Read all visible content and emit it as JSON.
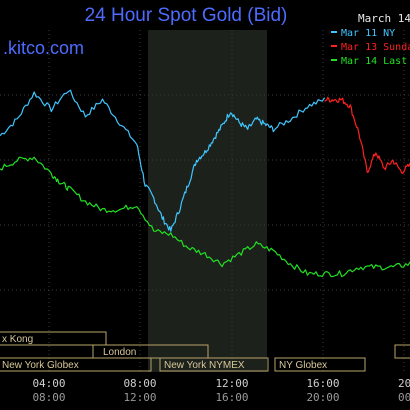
{
  "chart_data": {
    "type": "line",
    "title": "24 Hour Spot Gold (Bid)",
    "brand": ".kitco.com",
    "date_label": "March 14",
    "x_ticks_top": [
      "04:00",
      "08:00",
      "12:00",
      "16:00",
      "20"
    ],
    "x_ticks_bottom": [
      "08:00",
      "12:00",
      "16:00",
      "20:00",
      "00"
    ],
    "sessions": [
      "x Kong",
      "New York Globex",
      "London",
      "New York NYMEX",
      "NY Globex"
    ],
    "grid": true,
    "series": [
      {
        "name": "Mar 11 NY",
        "color": "#3fc6ff",
        "x": [
          0,
          1,
          2,
          3,
          4,
          5,
          6,
          7,
          8,
          8.5,
          9,
          9.5,
          10,
          10.5,
          11,
          11.5,
          12,
          12.5,
          13,
          13.5,
          14,
          14.5,
          15,
          15.5,
          16,
          17,
          18,
          19
        ],
        "y": [
          0.4,
          0.5,
          0.66,
          0.56,
          0.68,
          0.52,
          0.62,
          0.48,
          0.35,
          0.1,
          0.02,
          -0.1,
          -0.18,
          -0.05,
          0.1,
          0.25,
          0.3,
          0.38,
          0.46,
          0.55,
          0.48,
          0.44,
          0.5,
          0.47,
          0.44,
          0.5,
          0.58,
          0.62
        ]
      },
      {
        "name": "Mar 13 Sunday",
        "color": "#ff2020",
        "x": [
          19,
          19.5,
          20,
          20.5,
          21,
          21.5,
          22,
          22.5,
          23,
          23.5,
          24
        ],
        "y": [
          0.62,
          0.62,
          0.62,
          0.58,
          0.42,
          0.18,
          0.3,
          0.2,
          0.25,
          0.18,
          0.22
        ]
      },
      {
        "name": "Mar 14 Last",
        "color": "#22e022",
        "x": [
          0,
          1,
          2,
          3,
          3.5,
          4,
          5,
          6,
          7,
          8,
          9,
          10,
          11,
          12,
          13,
          14,
          15,
          16,
          17,
          18,
          19,
          20,
          21,
          22,
          23,
          24
        ],
        "y": [
          0.2,
          0.25,
          0.27,
          0.17,
          0.12,
          0.08,
          0.0,
          -0.05,
          -0.05,
          -0.02,
          -0.18,
          -0.2,
          -0.28,
          -0.32,
          -0.38,
          -0.32,
          -0.26,
          -0.3,
          -0.38,
          -0.44,
          -0.44,
          -0.44,
          -0.4,
          -0.4,
          -0.4,
          -0.38
        ]
      }
    ]
  }
}
